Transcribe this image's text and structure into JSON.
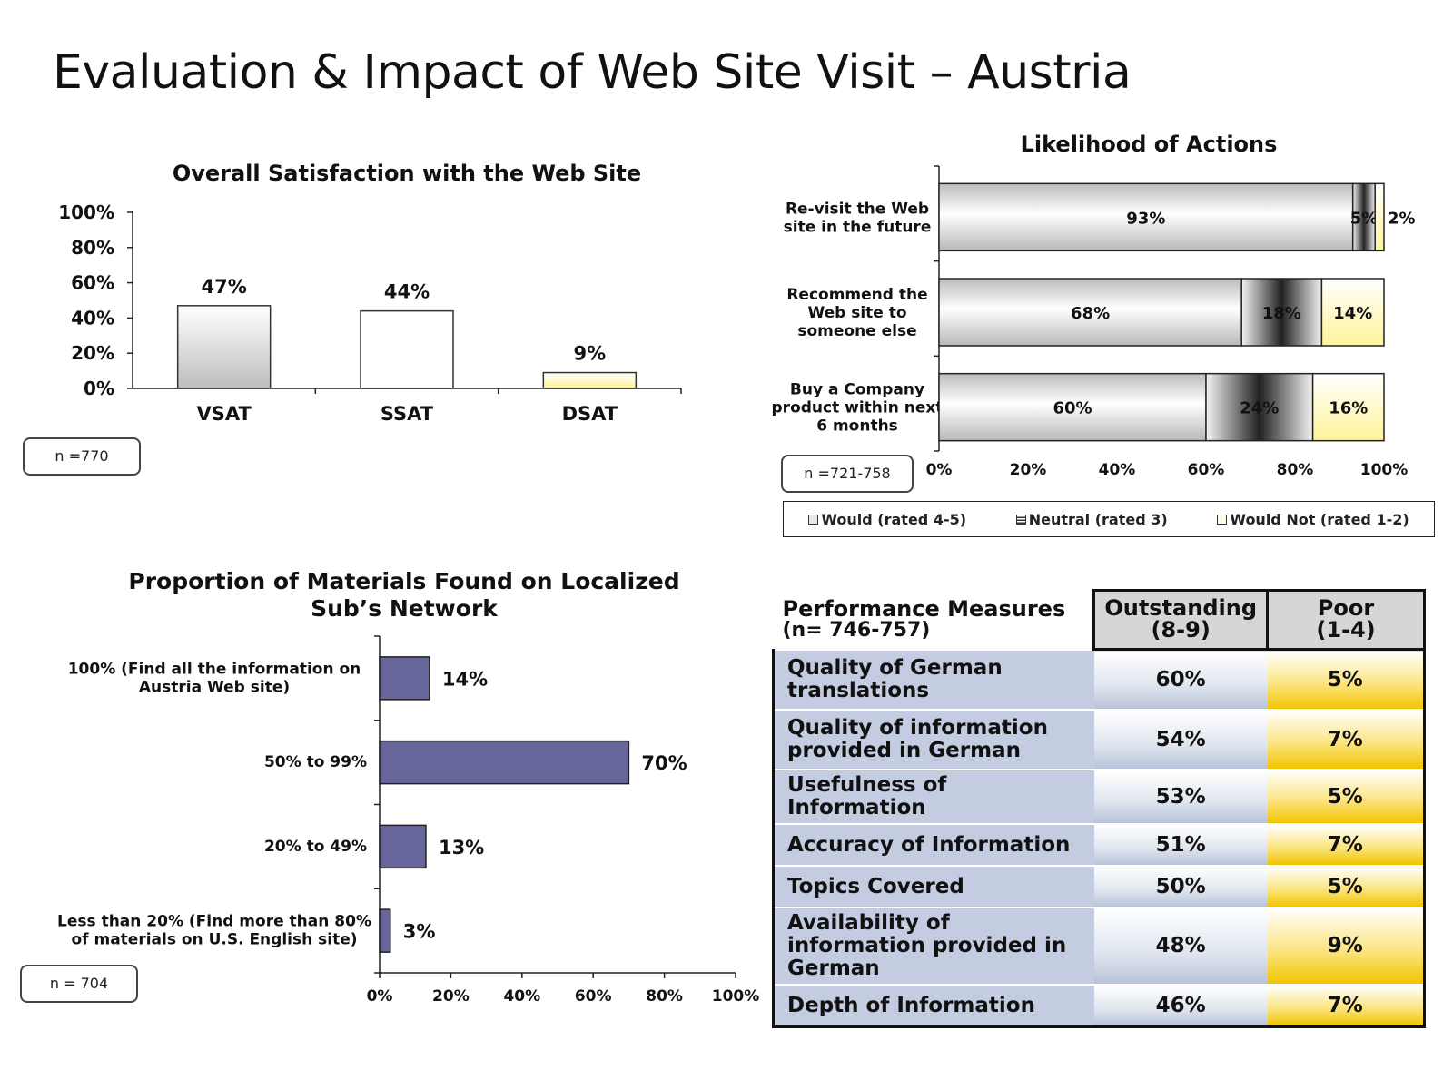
{
  "slide": {
    "title": "Evaluation & Impact of Web Site Visit – Austria"
  },
  "satisfaction": {
    "n_label": "n =770"
  },
  "likelihood": {
    "n_label": "n =721-758",
    "legend": [
      "Would (rated 4-5)",
      "Neutral (rated 3)",
      "Would Not (rated 1-2)"
    ]
  },
  "materials": {
    "n_label": "n = 704"
  },
  "chart_data": [
    {
      "type": "bar",
      "title": "Overall Satisfaction with the Web Site",
      "categories": [
        "VSAT",
        "SSAT",
        "DSAT"
      ],
      "values": [
        47,
        44,
        9
      ],
      "data_labels": [
        "47%",
        "44%",
        "9%"
      ],
      "yticks": [
        "0%",
        "20%",
        "40%",
        "60%",
        "80%",
        "100%"
      ],
      "ylim": [
        0,
        100
      ],
      "colors": [
        "#c8c8c8",
        "#ffffff",
        "#fff5b0"
      ]
    },
    {
      "type": "bar",
      "orientation": "horizontal-stacked",
      "title": "Likelihood of Actions",
      "categories": [
        "Re-visit the Web site in the future",
        "Recommend the Web site to someone else",
        "Buy a Company product within next 6 months"
      ],
      "series": [
        {
          "name": "Would (rated 4-5)",
          "values": [
            93,
            68,
            60
          ],
          "labels": [
            "93%",
            "68%",
            "60%"
          ],
          "color": "#d4d4d4"
        },
        {
          "name": "Neutral (rated 3)",
          "values": [
            5,
            18,
            24
          ],
          "labels": [
            "5%",
            "18%",
            "24%"
          ],
          "color": "#333333"
        },
        {
          "name": "Would Not (rated 1-2)",
          "values": [
            2,
            14,
            16
          ],
          "labels": [
            "2%",
            "14%",
            "16%"
          ],
          "color": "#fff6b0"
        }
      ],
      "xticks": [
        "0%",
        "20%",
        "40%",
        "60%",
        "80%",
        "100%"
      ],
      "xlim": [
        0,
        100
      ],
      "legend_position": "bottom"
    },
    {
      "type": "bar",
      "orientation": "horizontal",
      "title": "Proportion of Materials Found on Localized Sub’s Network",
      "categories": [
        "100% (Find all the information on Austria Web site)",
        "50% to 99%",
        "20% to 49%",
        "Less than 20% (Find more than 80% of materials on U.S. English site)"
      ],
      "values": [
        14,
        70,
        13,
        3
      ],
      "data_labels": [
        "14%",
        "70%",
        "13%",
        "3%"
      ],
      "xticks": [
        "0%",
        "20%",
        "40%",
        "60%",
        "80%",
        "100%"
      ],
      "xlim": [
        0,
        100
      ],
      "color": "#66669a"
    },
    {
      "type": "table",
      "title": "Performance Measures",
      "subtitle": "(n= 746-757)",
      "columns": [
        {
          "name": "Outstanding",
          "sub": "(8-9)"
        },
        {
          "name": "Poor",
          "sub": "(1-4)"
        }
      ],
      "rows": [
        {
          "label": "Quality of German translations",
          "outstanding": "60%",
          "poor": "5%"
        },
        {
          "label": "Quality of information provided in German",
          "outstanding": "54%",
          "poor": "7%"
        },
        {
          "label": "Usefulness of Information",
          "outstanding": "53%",
          "poor": "5%"
        },
        {
          "label": "Accuracy of Information",
          "outstanding": "51%",
          "poor": "7%"
        },
        {
          "label": "Topics Covered",
          "outstanding": "50%",
          "poor": "5%"
        },
        {
          "label": "Availability of information provided in German",
          "outstanding": "48%",
          "poor": "9%"
        },
        {
          "label": "Depth of Information",
          "outstanding": "46%",
          "poor": "7%"
        }
      ]
    }
  ]
}
